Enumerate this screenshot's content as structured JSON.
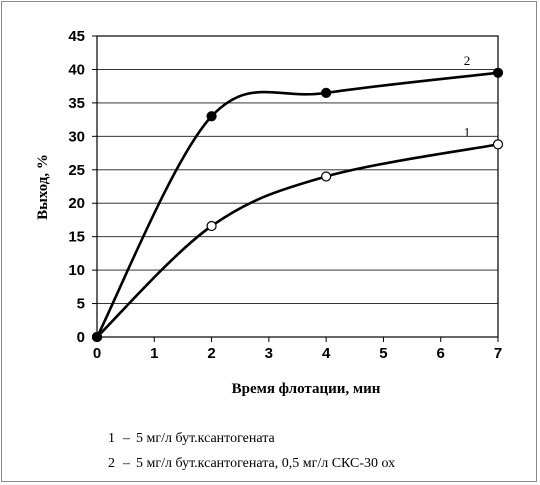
{
  "chart_data": {
    "type": "line",
    "xlabel": "Время флотации, мин",
    "ylabel": "Выход, %",
    "xlim": [
      0,
      7
    ],
    "ylim": [
      0,
      45
    ],
    "x_ticks": [
      "0",
      "1",
      "2",
      "3",
      "4",
      "5",
      "6",
      "7"
    ],
    "y_ticks": [
      "0",
      "5",
      "10",
      "15",
      "20",
      "25",
      "30",
      "35",
      "40",
      "45"
    ],
    "grid": "horizontal",
    "series": [
      {
        "label": "1",
        "marker": "open-circle",
        "x": [
          0,
          2,
          4,
          7
        ],
        "y": [
          0,
          16.6,
          24,
          28.8
        ],
        "color": "#000000"
      },
      {
        "label": "2",
        "marker": "filled-circle",
        "x": [
          0,
          2,
          4,
          7
        ],
        "y": [
          0,
          33,
          36.5,
          39.5
        ],
        "color": "#000000"
      }
    ],
    "legend": [
      {
        "number": "1",
        "dash": "–",
        "text": "5 мг/л бут.ксантогената"
      },
      {
        "number": "2",
        "dash": "–",
        "text": "5 мг/л бут.ксантогената, 0,5 мг/л СКС-30 ох"
      }
    ]
  }
}
